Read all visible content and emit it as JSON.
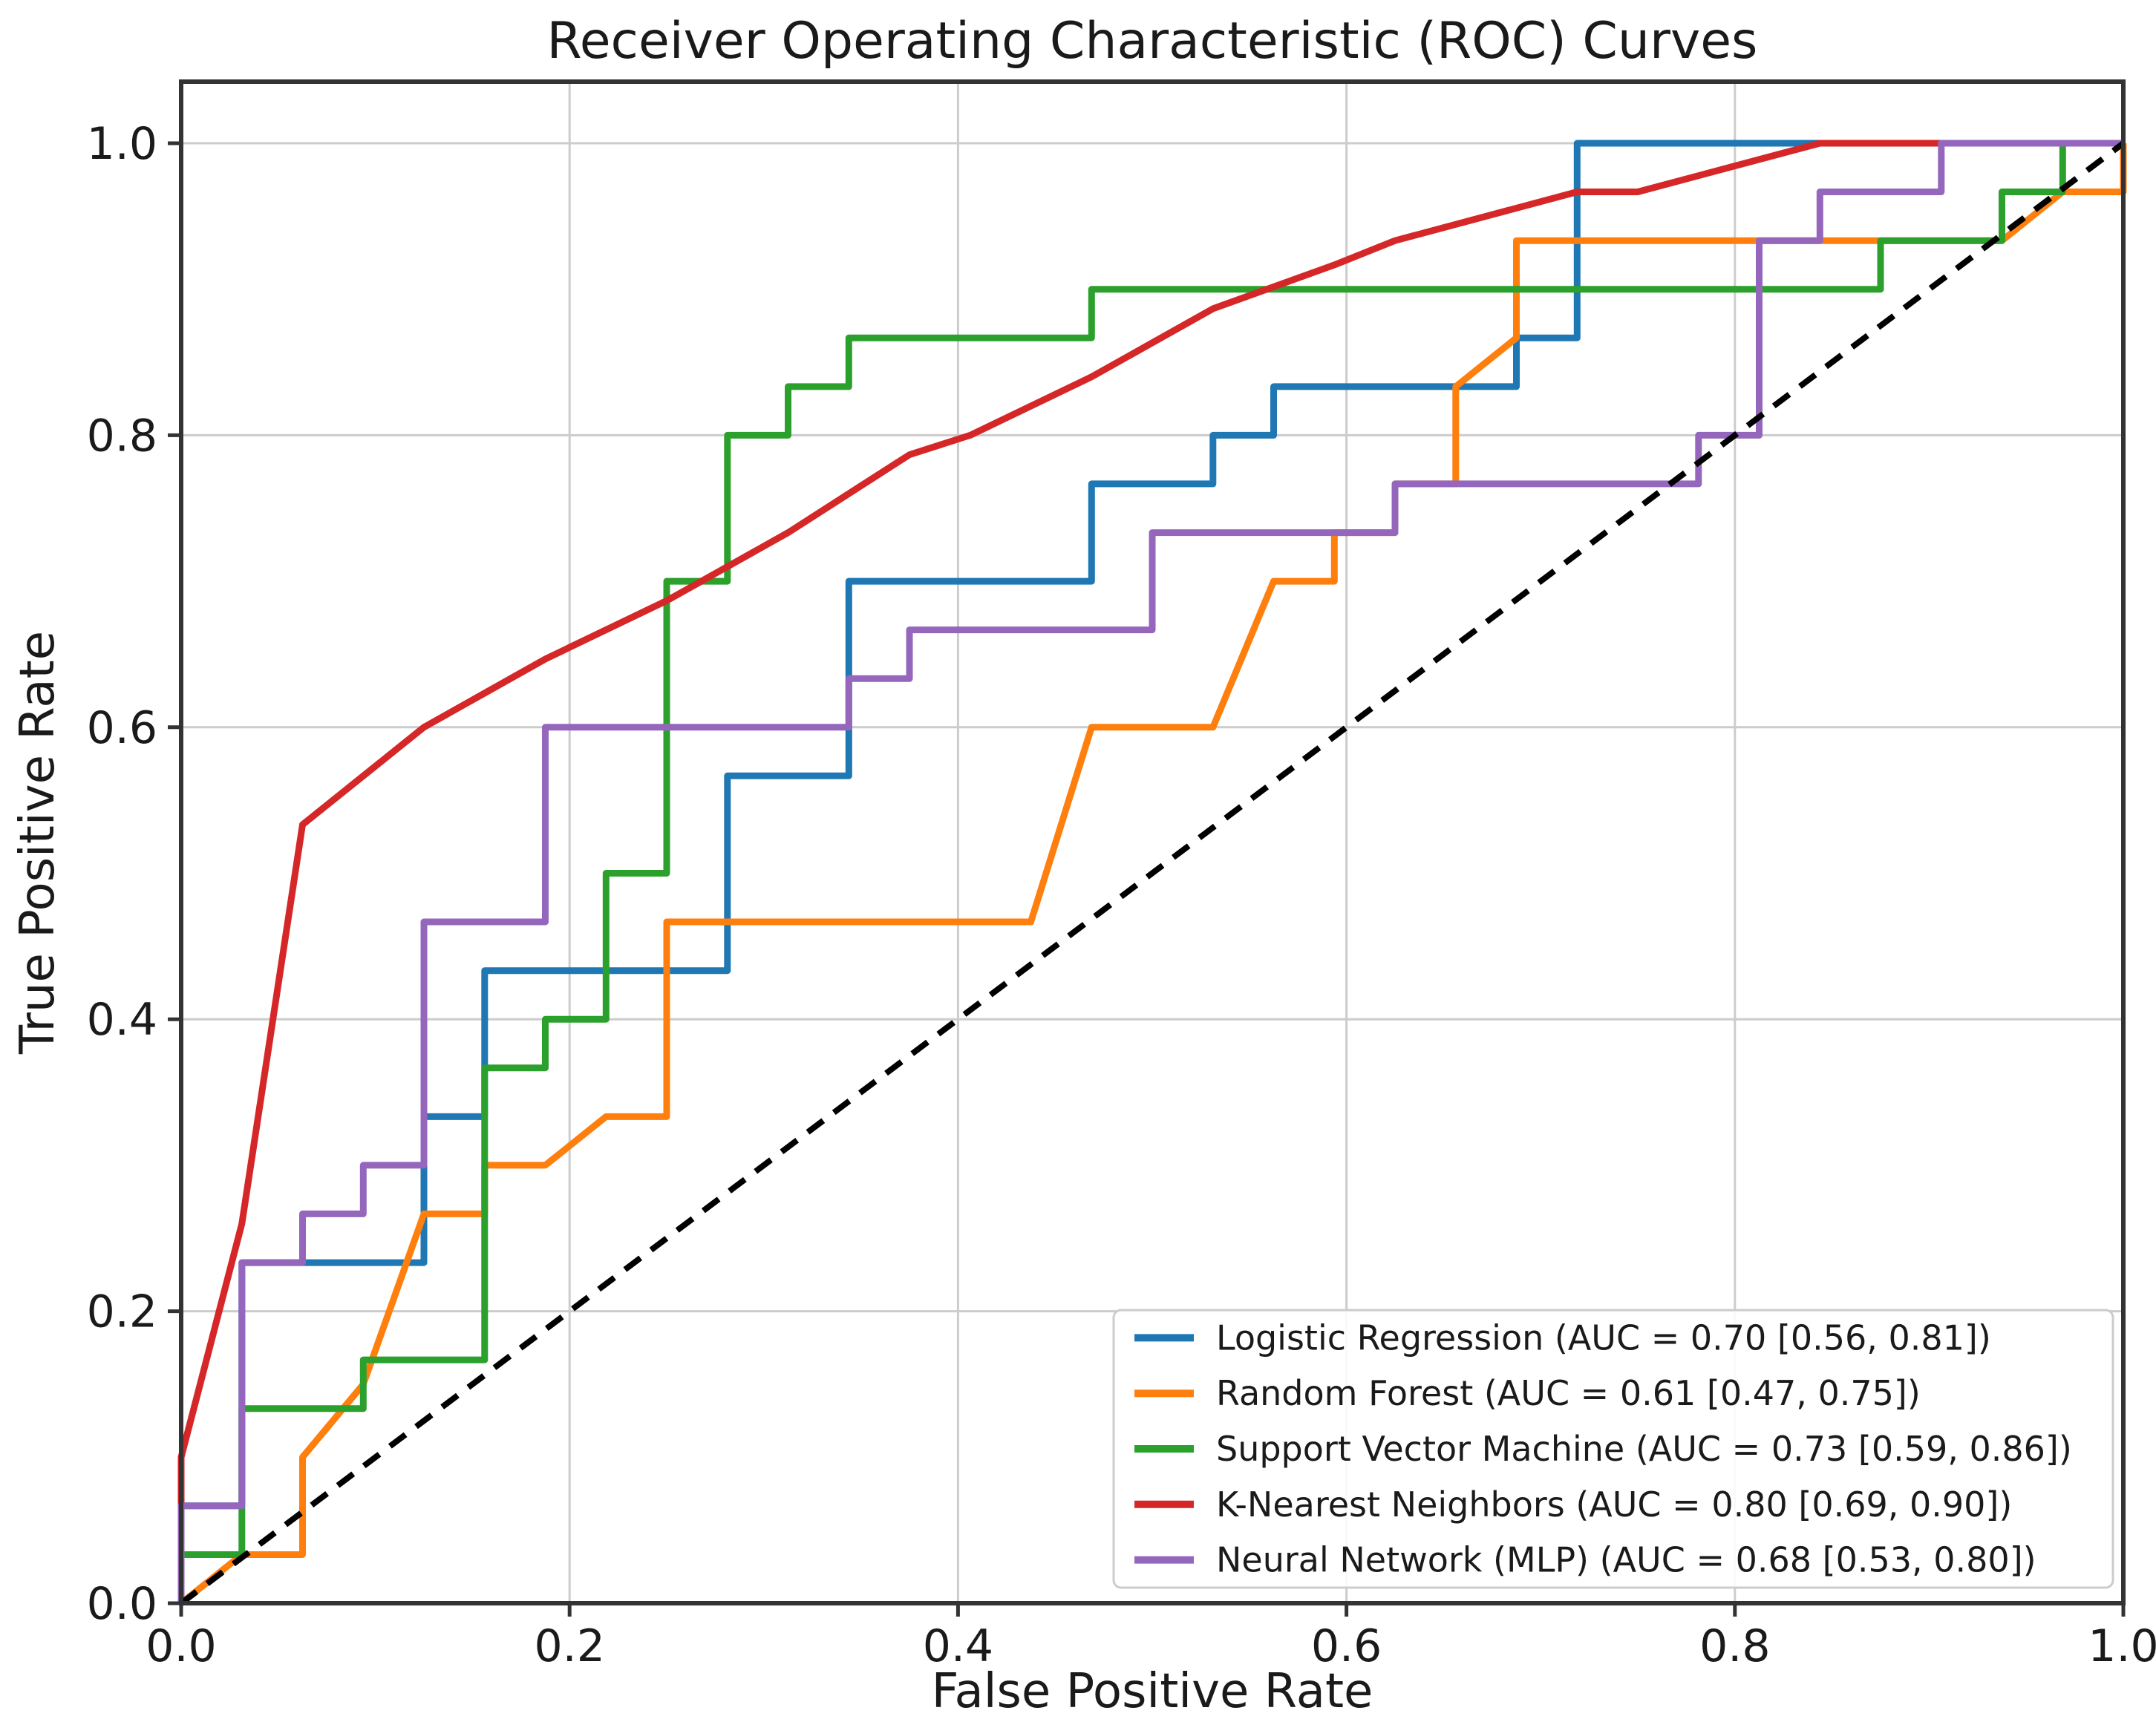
{
  "chart_data": {
    "type": "line",
    "subtype": "roc-curves",
    "title": "Receiver Operating Characteristic (ROC) Curves",
    "xlabel": "False Positive Rate",
    "ylabel": "True Positive Rate",
    "xlim": [
      0.0,
      1.0
    ],
    "ylim": [
      0.0,
      1.045
    ],
    "xticks": [
      "0.0",
      "0.2",
      "0.4",
      "0.6",
      "0.8",
      "1.0"
    ],
    "yticks": [
      "0.0",
      "0.2",
      "0.4",
      "0.6",
      "0.8",
      "1.0"
    ],
    "xtick_values": [
      0.0,
      0.2,
      0.4,
      0.6,
      0.8,
      1.0
    ],
    "ytick_values": [
      0.0,
      0.2,
      0.4,
      0.6,
      0.8,
      1.0
    ],
    "grid": true,
    "grid_color": "#cccccc",
    "spine_color": "#333333",
    "legend_position": "lower right",
    "chance_line": {
      "name": "chance-diagonal",
      "color": "#000000",
      "style": "dashed",
      "points": [
        [
          0,
          0
        ],
        [
          1,
          1
        ]
      ]
    },
    "series": [
      {
        "name": "Logistic Regression",
        "legend_label": "Logistic Regression (AUC = 0.70 [0.56, 0.81])",
        "auc": 0.7,
        "auc_ci": [
          0.56,
          0.81
        ],
        "color": "#1f77b4",
        "points": [
          [
            0,
            0
          ],
          [
            0,
            0.0667
          ],
          [
            0.03125,
            0.0667
          ],
          [
            0.03125,
            0.2333
          ],
          [
            0.125,
            0.2333
          ],
          [
            0.125,
            0.3333
          ],
          [
            0.15625,
            0.3333
          ],
          [
            0.15625,
            0.4333
          ],
          [
            0.28125,
            0.4333
          ],
          [
            0.28125,
            0.5667
          ],
          [
            0.34375,
            0.5667
          ],
          [
            0.34375,
            0.7
          ],
          [
            0.46875,
            0.7
          ],
          [
            0.46875,
            0.7667
          ],
          [
            0.53125,
            0.7667
          ],
          [
            0.53125,
            0.8
          ],
          [
            0.5625,
            0.8
          ],
          [
            0.5625,
            0.8333
          ],
          [
            0.6875,
            0.8333
          ],
          [
            0.6875,
            0.8667
          ],
          [
            0.71875,
            0.8667
          ],
          [
            0.71875,
            1
          ],
          [
            1,
            1
          ]
        ]
      },
      {
        "name": "Random Forest",
        "legend_label": "Random Forest (AUC = 0.61 [0.47, 0.75])",
        "auc": 0.61,
        "auc_ci": [
          0.47,
          0.75
        ],
        "color": "#ff7f0e",
        "points": [
          [
            0,
            0
          ],
          [
            0.03125,
            0.0333
          ],
          [
            0.0625,
            0.0333
          ],
          [
            0.0625,
            0.1
          ],
          [
            0.09375,
            0.15
          ],
          [
            0.125,
            0.2667
          ],
          [
            0.15625,
            0.2667
          ],
          [
            0.15625,
            0.3
          ],
          [
            0.1875,
            0.3
          ],
          [
            0.21875,
            0.3333
          ],
          [
            0.25,
            0.3333
          ],
          [
            0.25,
            0.4667
          ],
          [
            0.4375,
            0.4667
          ],
          [
            0.46875,
            0.6
          ],
          [
            0.53125,
            0.6
          ],
          [
            0.5625,
            0.7
          ],
          [
            0.59375,
            0.7
          ],
          [
            0.59375,
            0.7333
          ],
          [
            0.625,
            0.7333
          ],
          [
            0.625,
            0.7667
          ],
          [
            0.65625,
            0.7667
          ],
          [
            0.65625,
            0.8333
          ],
          [
            0.6875,
            0.8667
          ],
          [
            0.6875,
            0.9333
          ],
          [
            0.9375,
            0.9333
          ],
          [
            0.96875,
            0.9667
          ],
          [
            1,
            0.9667
          ],
          [
            1,
            1
          ]
        ]
      },
      {
        "name": "Support Vector Machine",
        "legend_label": "Support Vector Machine (AUC = 0.73 [0.59, 0.86])",
        "auc": 0.73,
        "auc_ci": [
          0.59,
          0.86
        ],
        "color": "#2ca02c",
        "points": [
          [
            0,
            0
          ],
          [
            0,
            0.0333
          ],
          [
            0.03125,
            0.0333
          ],
          [
            0.03125,
            0.1333
          ],
          [
            0.09375,
            0.1333
          ],
          [
            0.09375,
            0.1667
          ],
          [
            0.15625,
            0.1667
          ],
          [
            0.15625,
            0.3667
          ],
          [
            0.1875,
            0.3667
          ],
          [
            0.1875,
            0.4
          ],
          [
            0.21875,
            0.4
          ],
          [
            0.21875,
            0.5
          ],
          [
            0.25,
            0.5
          ],
          [
            0.25,
            0.7
          ],
          [
            0.28125,
            0.7
          ],
          [
            0.28125,
            0.8
          ],
          [
            0.3125,
            0.8
          ],
          [
            0.3125,
            0.8333
          ],
          [
            0.34375,
            0.8333
          ],
          [
            0.34375,
            0.8667
          ],
          [
            0.46875,
            0.8667
          ],
          [
            0.46875,
            0.9
          ],
          [
            0.875,
            0.9
          ],
          [
            0.875,
            0.9333
          ],
          [
            0.9375,
            0.9333
          ],
          [
            0.9375,
            0.9667
          ],
          [
            0.96875,
            0.9667
          ],
          [
            0.96875,
            1
          ],
          [
            1,
            1
          ]
        ]
      },
      {
        "name": "K-Nearest Neighbors",
        "legend_label": "K-Nearest Neighbors (AUC = 0.80 [0.69, 0.90])",
        "auc": 0.8,
        "auc_ci": [
          0.69,
          0.9
        ],
        "color": "#d62728",
        "points": [
          [
            0,
            0
          ],
          [
            0,
            0.1
          ],
          [
            0.03125,
            0.26
          ],
          [
            0.0625,
            0.5333
          ],
          [
            0.125,
            0.6
          ],
          [
            0.1875,
            0.6467
          ],
          [
            0.25,
            0.6867
          ],
          [
            0.3125,
            0.7333
          ],
          [
            0.375,
            0.7867
          ],
          [
            0.40625,
            0.8
          ],
          [
            0.46875,
            0.84
          ],
          [
            0.53125,
            0.8867
          ],
          [
            0.59375,
            0.9167
          ],
          [
            0.625,
            0.9333
          ],
          [
            0.71875,
            0.9667
          ],
          [
            0.75,
            0.9667
          ],
          [
            0.84375,
            1
          ],
          [
            1,
            1
          ]
        ]
      },
      {
        "name": "Neural Network (MLP)",
        "legend_label": "Neural Network (MLP) (AUC = 0.68 [0.53, 0.80])",
        "auc": 0.68,
        "auc_ci": [
          0.53,
          0.8
        ],
        "color": "#9467bd",
        "points": [
          [
            0,
            0
          ],
          [
            0,
            0.0667
          ],
          [
            0.03125,
            0.0667
          ],
          [
            0.03125,
            0.2333
          ],
          [
            0.0625,
            0.2333
          ],
          [
            0.0625,
            0.2667
          ],
          [
            0.09375,
            0.2667
          ],
          [
            0.09375,
            0.3
          ],
          [
            0.125,
            0.3
          ],
          [
            0.125,
            0.4667
          ],
          [
            0.1875,
            0.4667
          ],
          [
            0.1875,
            0.6
          ],
          [
            0.34375,
            0.6
          ],
          [
            0.34375,
            0.6333
          ],
          [
            0.375,
            0.6333
          ],
          [
            0.375,
            0.6667
          ],
          [
            0.5,
            0.6667
          ],
          [
            0.5,
            0.7333
          ],
          [
            0.625,
            0.7333
          ],
          [
            0.625,
            0.7667
          ],
          [
            0.78125,
            0.7667
          ],
          [
            0.78125,
            0.8
          ],
          [
            0.8125,
            0.8
          ],
          [
            0.8125,
            0.9333
          ],
          [
            0.84375,
            0.9333
          ],
          [
            0.84375,
            0.9667
          ],
          [
            0.90625,
            0.9667
          ],
          [
            0.90625,
            1
          ],
          [
            1,
            1
          ]
        ]
      }
    ]
  }
}
